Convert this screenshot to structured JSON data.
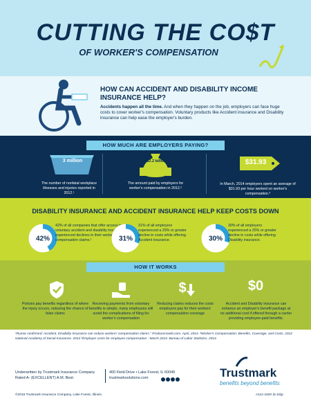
{
  "header": {
    "title": "CUTTING THE CO$T",
    "subtitle": "OF WORKER'S COMPENSATION"
  },
  "intro": {
    "heading": "HOW CAN ACCIDENT AND DISABILITY INCOME INSURANCE HELP?",
    "lead": "Accidents happen all the time.",
    "body": "And when they happen on the job, employers can face huge costs to cover worker's compensation. Voluntary products like Accident insurance and Disability insurance can help ease the employer's burden."
  },
  "paying": {
    "heading": "HOW MUCH ARE EMPLOYERS PAYING?",
    "items": [
      {
        "figure": "3 million",
        "text": "The number of nonfatal workplace illnesses and injuries reported in 2012.¹"
      },
      {
        "figure": "$82.2 billion",
        "text": "The amount paid by employers for worker's compensation in 2012.²"
      },
      {
        "figure": "$31.93",
        "text": "In March, 2014 employers spent an average of $31.93 per hour worked on worker's compensation.³"
      }
    ]
  },
  "costs": {
    "heading": "DISABILITY INSURANCE AND ACCIDENT INSURANCE HELP KEEP COSTS DOWN",
    "stats": [
      {
        "value": 42,
        "label": "42%",
        "text": "42% of all companies that offer access to voluntary accident and disability insurance experienced declines in their worker's compensation claims.¹"
      },
      {
        "value": 31,
        "label": "31%",
        "text": "31% of all employers experienced a 25% or greater decline in costs while offering Accident insurance."
      },
      {
        "value": 30,
        "label": "30%",
        "text": "30% of all employers experienced a 25% or greater decline in costs while offering Disability insurance."
      }
    ]
  },
  "how": {
    "heading": "HOW IT WORKS",
    "zero": "$0",
    "items": [
      "Policies pay benefits regardless of where the injury occurs, reducing the chance of false claims",
      "Receiving payments from voluntary benefits is simple, many employees will avoid the complications of filing for worker's compensation",
      "Reducing claims reduces the costs employers pay for their workers' compensation coverage",
      "Accident and Disability insurance can enhance an employer's benefit package at no additional cost if offered through a carrier providing employee-paid benefits."
    ]
  },
  "footnotes": "¹Rumor confirmed: Accident, Disability Insurance can reduce workers' compensation claims.\" Producersweb.com. April, 2014. ²Worker's Compensation: Benefits, Coverage, and Costs, 2012 National Academy of Social Insurance. 2014 ³Employer costs for employee compensation - March 2014. Bureau of Labor Statistics, 2014.",
  "footer": {
    "underwriter": "Underwritten by Trustmark Insurance Company",
    "rating": "Rated A- (EXCELLENT) A.M. Best.",
    "address": "400 Field Drive • Lake Forest, IL 60045",
    "website": "trustmarksolutions.com",
    "brand": "Trustmark",
    "tagline": "benefits beyond benefits",
    "copyright": "©2018 Trustmark Insurance Company, Lake Forest, Illinois.",
    "code": "A112-1620 (5-18)p"
  }
}
